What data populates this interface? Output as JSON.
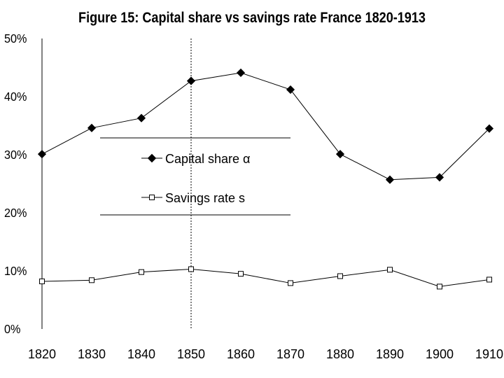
{
  "chart_data": {
    "type": "line",
    "title": "Figure 15: Capital share vs savings rate France 1820-1913",
    "x": [
      1820,
      1830,
      1840,
      1850,
      1860,
      1870,
      1880,
      1890,
      1900,
      1910
    ],
    "xlim": [
      1820,
      1910
    ],
    "ylim": [
      0,
      50
    ],
    "y_tick_labels": [
      "0%",
      "10%",
      "20%",
      "30%",
      "40%",
      "50%"
    ],
    "x_tick_labels": [
      "1820",
      "1830",
      "1840",
      "1850",
      "1860",
      "1870",
      "1880",
      "1890",
      "1900",
      "1910"
    ],
    "grid": false,
    "reference_line_x": 1850,
    "legend_placement": "center-left",
    "series": [
      {
        "name": "Capital share α",
        "marker": "filled-diamond",
        "color": "#000000",
        "values": [
          30.1,
          34.6,
          36.3,
          42.7,
          44.1,
          41.2,
          30.1,
          25.7,
          26.1,
          34.5
        ]
      },
      {
        "name": "Savings rate s",
        "marker": "open-square",
        "color": "#000000",
        "values": [
          8.2,
          8.4,
          9.8,
          10.3,
          9.5,
          7.9,
          9.1,
          10.2,
          7.3,
          8.5
        ]
      }
    ]
  }
}
